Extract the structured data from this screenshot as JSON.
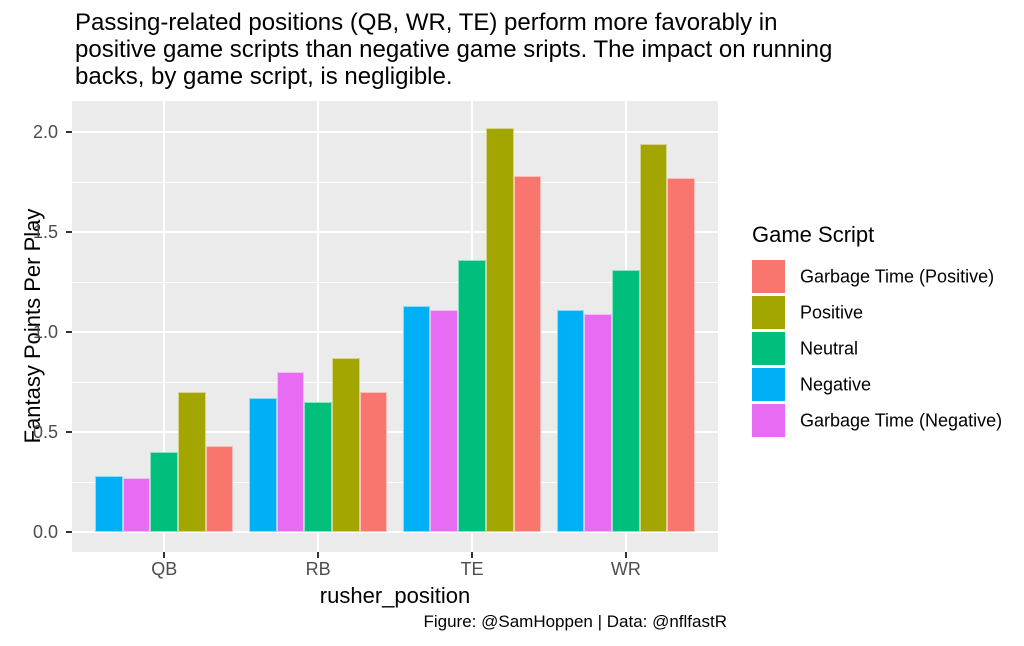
{
  "title": {
    "lines": [
      "Passing-related positions (QB, WR, TE) perform more favorably in",
      "positive game scripts than negative game sripts. The impact on running",
      "backs, by game script, is negligible."
    ]
  },
  "caption": "Figure: @SamHoppen | Data: @nflfastR",
  "y_axis": {
    "label": "Fantasy Points Per Play",
    "ticks": [
      "0.0",
      "0.5",
      "1.0",
      "1.5",
      "2.0"
    ]
  },
  "x_axis": {
    "label": "rusher_position",
    "categories": [
      "QB",
      "RB",
      "TE",
      "WR"
    ]
  },
  "legend": {
    "title": "Game Script",
    "position": "right",
    "items": [
      {
        "label": "Garbage Time (Positive)",
        "color": "#F8766D"
      },
      {
        "label": "Positive",
        "color": "#A3A500"
      },
      {
        "label": "Neutral",
        "color": "#00BF7D"
      },
      {
        "label": "Negative",
        "color": "#00B0F6"
      },
      {
        "label": "Garbage Time (Negative)",
        "color": "#E76BF3"
      }
    ]
  },
  "colors": {
    "panel_background": "#EBEBEB",
    "gridline": "#FFFFFF",
    "tick_label": "#4D4D4D",
    "text": "#000000"
  },
  "chart_data": {
    "type": "bar",
    "title": "Passing-related positions (QB, WR, TE) perform more favorably in positive game scripts than negative game sripts. The impact on running backs, by game script, is negligible.",
    "xlabel": "rusher_position",
    "ylabel": "Fantasy Points Per Play",
    "categories": [
      "QB",
      "RB",
      "TE",
      "WR"
    ],
    "series": [
      {
        "name": "Negative",
        "color": "#00B0F6",
        "values": [
          0.28,
          0.67,
          1.13,
          1.11
        ]
      },
      {
        "name": "Garbage Time (Negative)",
        "color": "#E76BF3",
        "values": [
          0.27,
          0.8,
          1.11,
          1.09
        ]
      },
      {
        "name": "Neutral",
        "color": "#00BF7D",
        "values": [
          0.4,
          0.65,
          1.36,
          1.31
        ]
      },
      {
        "name": "Positive",
        "color": "#A3A500",
        "values": [
          0.7,
          0.87,
          2.02,
          1.94
        ]
      },
      {
        "name": "Garbage Time (Positive)",
        "color": "#F8766D",
        "values": [
          0.43,
          0.7,
          1.78,
          1.77
        ]
      }
    ],
    "ylim": [
      0,
      2.1
    ],
    "ytick_step_major": 0.5,
    "ytick_step_minor": 0.25,
    "grid": true,
    "legend_title": "Game Script",
    "legend_position": "right"
  }
}
